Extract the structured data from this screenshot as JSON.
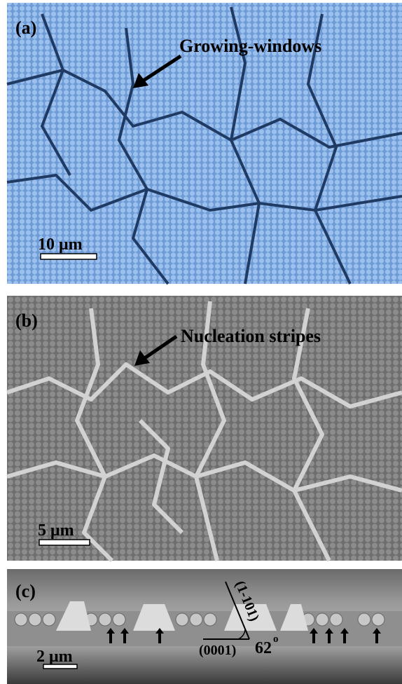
{
  "panels": [
    {
      "label": "(a)",
      "annotation": "Growing-windows",
      "scale_bar": "10 μm"
    },
    {
      "label": "(b)",
      "annotation": "Nucleation stripes",
      "scale_bar": "5 μm"
    },
    {
      "label": "(c)",
      "scale_bar": "2 μm",
      "facet_top": "(1-101)",
      "facet_bottom": "(0001)",
      "angle": "62",
      "angle_unit": "o"
    }
  ]
}
